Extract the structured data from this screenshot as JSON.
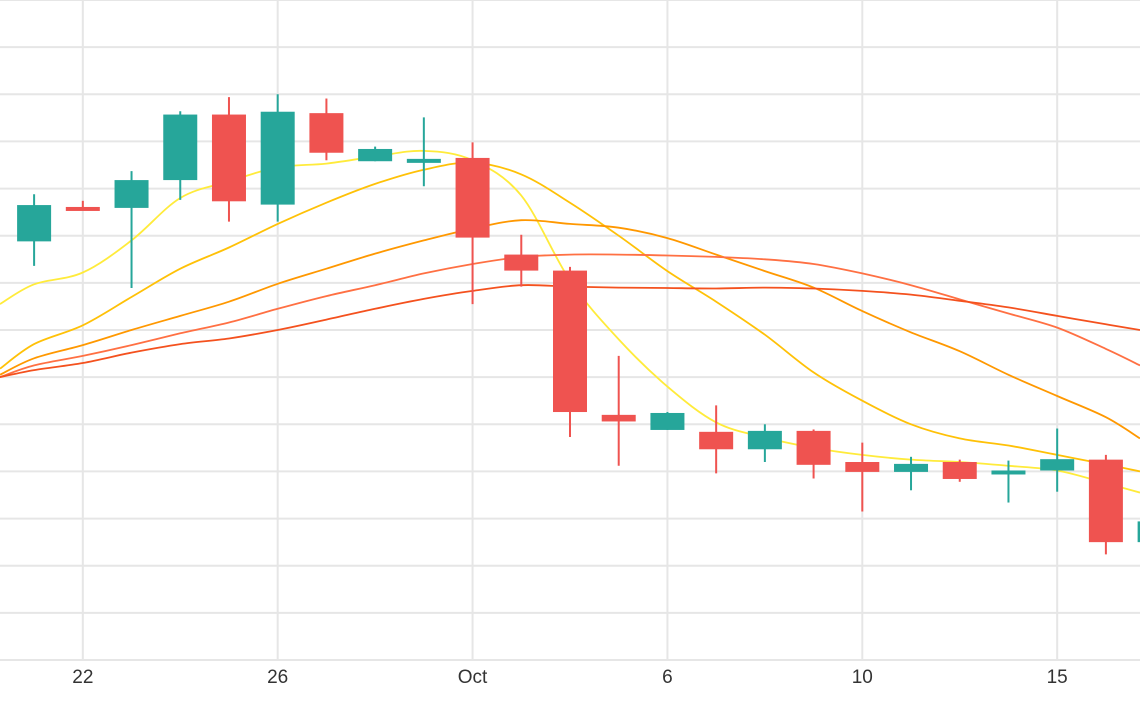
{
  "chart_data": {
    "type": "candlestick",
    "title": "",
    "xlabel": "",
    "ylabel": "",
    "x_tick_labels": [
      "22",
      "26",
      "Oct",
      "6",
      "10",
      "15"
    ],
    "xlim": [
      20.3,
      43.7
    ],
    "ylim": [
      0,
      14
    ],
    "grid": true,
    "legend": "none",
    "colors": {
      "up": "#26a69a",
      "down": "#ef5350",
      "grid": "#e6e6e6",
      "axis_text": "#333333"
    },
    "candles": [
      {
        "day": 21,
        "open": 8.88,
        "high": 9.88,
        "low": 8.36,
        "close": 9.65
      },
      {
        "day": 22,
        "open": 9.61,
        "high": 9.74,
        "low": 9.54,
        "close": 9.55
      },
      {
        "day": 23,
        "open": 9.59,
        "high": 10.37,
        "low": 7.89,
        "close": 10.18
      },
      {
        "day": 24,
        "open": 10.18,
        "high": 11.64,
        "low": 9.76,
        "close": 11.57
      },
      {
        "day": 25,
        "open": 11.57,
        "high": 11.94,
        "low": 9.3,
        "close": 9.73
      },
      {
        "day": 26,
        "open": 9.66,
        "high": 12.0,
        "low": 9.3,
        "close": 11.63
      },
      {
        "day": 27,
        "open": 11.6,
        "high": 11.91,
        "low": 10.6,
        "close": 10.76
      },
      {
        "day": 28,
        "open": 10.58,
        "high": 10.89,
        "low": 10.58,
        "close": 10.84
      },
      {
        "day": 29,
        "open": 10.58,
        "high": 11.51,
        "low": 10.05,
        "close": 10.63
      },
      {
        "day": 30,
        "open": 10.65,
        "high": 10.98,
        "low": 7.55,
        "close": 8.96
      },
      {
        "day": 31,
        "open": 8.6,
        "high": 9.02,
        "low": 7.92,
        "close": 8.26
      },
      {
        "day": 32,
        "open": 8.26,
        "high": 8.34,
        "low": 4.73,
        "close": 5.26
      },
      {
        "day": 33,
        "open": 5.2,
        "high": 6.45,
        "low": 4.12,
        "close": 5.06
      },
      {
        "day": 34,
        "open": 4.88,
        "high": 5.26,
        "low": 4.88,
        "close": 5.24
      },
      {
        "day": 35,
        "open": 4.84,
        "high": 5.4,
        "low": 3.96,
        "close": 4.47
      },
      {
        "day": 36,
        "open": 4.47,
        "high": 5.0,
        "low": 4.2,
        "close": 4.86
      },
      {
        "day": 37,
        "open": 4.86,
        "high": 4.89,
        "low": 3.85,
        "close": 4.14
      },
      {
        "day": 38,
        "open": 4.2,
        "high": 4.61,
        "low": 3.15,
        "close": 3.99
      },
      {
        "day": 39,
        "open": 3.99,
        "high": 4.31,
        "low": 3.6,
        "close": 4.16
      },
      {
        "day": 40,
        "open": 4.2,
        "high": 4.25,
        "low": 3.78,
        "close": 3.84
      },
      {
        "day": 41,
        "open": 4.0,
        "high": 4.23,
        "low": 3.34,
        "close": 4.02
      },
      {
        "day": 42,
        "open": 4.02,
        "high": 4.91,
        "low": 3.57,
        "close": 4.26
      },
      {
        "day": 43,
        "open": 4.25,
        "high": 4.35,
        "low": 2.24,
        "close": 2.5
      },
      {
        "day": 44,
        "open": 2.5,
        "high": 3.25,
        "low": 2.1,
        "close": 2.94
      }
    ],
    "moving_averages": [
      {
        "color": "#ffeb3b",
        "points": [
          [
            20.3,
            7.55
          ],
          [
            21,
            7.97
          ],
          [
            22,
            8.22
          ],
          [
            23,
            8.9
          ],
          [
            24,
            9.8
          ],
          [
            25,
            10.15
          ],
          [
            26,
            10.45
          ],
          [
            27,
            10.53
          ],
          [
            28,
            10.68
          ],
          [
            29,
            10.8
          ],
          [
            30,
            10.6
          ],
          [
            31,
            9.85
          ],
          [
            32,
            8.05
          ],
          [
            33,
            6.8
          ],
          [
            34,
            5.8
          ],
          [
            35,
            5.04
          ],
          [
            36,
            4.72
          ],
          [
            37,
            4.5
          ],
          [
            38,
            4.35
          ],
          [
            39,
            4.25
          ],
          [
            40,
            4.2
          ],
          [
            41,
            4.12
          ],
          [
            42,
            4.02
          ],
          [
            43,
            3.75
          ],
          [
            43.7,
            3.55
          ]
        ]
      },
      {
        "color": "#ffc107",
        "points": [
          [
            20.3,
            6.18
          ],
          [
            21,
            6.7
          ],
          [
            22,
            7.1
          ],
          [
            23,
            7.7
          ],
          [
            24,
            8.3
          ],
          [
            25,
            8.75
          ],
          [
            26,
            9.25
          ],
          [
            27,
            9.7
          ],
          [
            28,
            10.1
          ],
          [
            29,
            10.4
          ],
          [
            30,
            10.55
          ],
          [
            31,
            10.3
          ],
          [
            32,
            9.7
          ],
          [
            33,
            9.0
          ],
          [
            34,
            8.25
          ],
          [
            35,
            7.6
          ],
          [
            36,
            6.9
          ],
          [
            37,
            6.1
          ],
          [
            38,
            5.5
          ],
          [
            39,
            5.0
          ],
          [
            40,
            4.7
          ],
          [
            41,
            4.55
          ],
          [
            42,
            4.35
          ],
          [
            43,
            4.15
          ],
          [
            43.7,
            4.0
          ]
        ]
      },
      {
        "color": "#ff9800",
        "points": [
          [
            20.3,
            6.05
          ],
          [
            21,
            6.4
          ],
          [
            22,
            6.68
          ],
          [
            23,
            7.0
          ],
          [
            24,
            7.3
          ],
          [
            25,
            7.6
          ],
          [
            26,
            7.98
          ],
          [
            27,
            8.3
          ],
          [
            28,
            8.62
          ],
          [
            29,
            8.9
          ],
          [
            30,
            9.15
          ],
          [
            31,
            9.33
          ],
          [
            32,
            9.25
          ],
          [
            33,
            9.17
          ],
          [
            34,
            8.95
          ],
          [
            35,
            8.6
          ],
          [
            36,
            8.25
          ],
          [
            37,
            7.9
          ],
          [
            38,
            7.4
          ],
          [
            39,
            6.95
          ],
          [
            40,
            6.55
          ],
          [
            41,
            6.05
          ],
          [
            42,
            5.6
          ],
          [
            43,
            5.15
          ],
          [
            43.7,
            4.7
          ]
        ]
      },
      {
        "color": "#ff7043",
        "points": [
          [
            20.3,
            6.0
          ],
          [
            21,
            6.25
          ],
          [
            22,
            6.45
          ],
          [
            23,
            6.68
          ],
          [
            24,
            6.93
          ],
          [
            25,
            7.16
          ],
          [
            26,
            7.45
          ],
          [
            27,
            7.72
          ],
          [
            28,
            7.95
          ],
          [
            29,
            8.2
          ],
          [
            30,
            8.4
          ],
          [
            31,
            8.55
          ],
          [
            32,
            8.6
          ],
          [
            33,
            8.6
          ],
          [
            34,
            8.58
          ],
          [
            35,
            8.55
          ],
          [
            36,
            8.5
          ],
          [
            37,
            8.4
          ],
          [
            38,
            8.2
          ],
          [
            39,
            7.95
          ],
          [
            40,
            7.65
          ],
          [
            41,
            7.35
          ],
          [
            42,
            7.05
          ],
          [
            43,
            6.6
          ],
          [
            43.7,
            6.25
          ]
        ]
      },
      {
        "color": "#f4511e",
        "points": [
          [
            20.3,
            6.0
          ],
          [
            21,
            6.15
          ],
          [
            22,
            6.3
          ],
          [
            23,
            6.52
          ],
          [
            24,
            6.7
          ],
          [
            25,
            6.82
          ],
          [
            26,
            7.0
          ],
          [
            27,
            7.22
          ],
          [
            28,
            7.45
          ],
          [
            29,
            7.66
          ],
          [
            30,
            7.83
          ],
          [
            31,
            7.95
          ],
          [
            32,
            7.92
          ],
          [
            33,
            7.9
          ],
          [
            34,
            7.89
          ],
          [
            35,
            7.88
          ],
          [
            36,
            7.9
          ],
          [
            37,
            7.88
          ],
          [
            38,
            7.83
          ],
          [
            39,
            7.75
          ],
          [
            40,
            7.62
          ],
          [
            41,
            7.48
          ],
          [
            42,
            7.3
          ],
          [
            43,
            7.12
          ],
          [
            43.7,
            7.0
          ]
        ]
      }
    ]
  }
}
